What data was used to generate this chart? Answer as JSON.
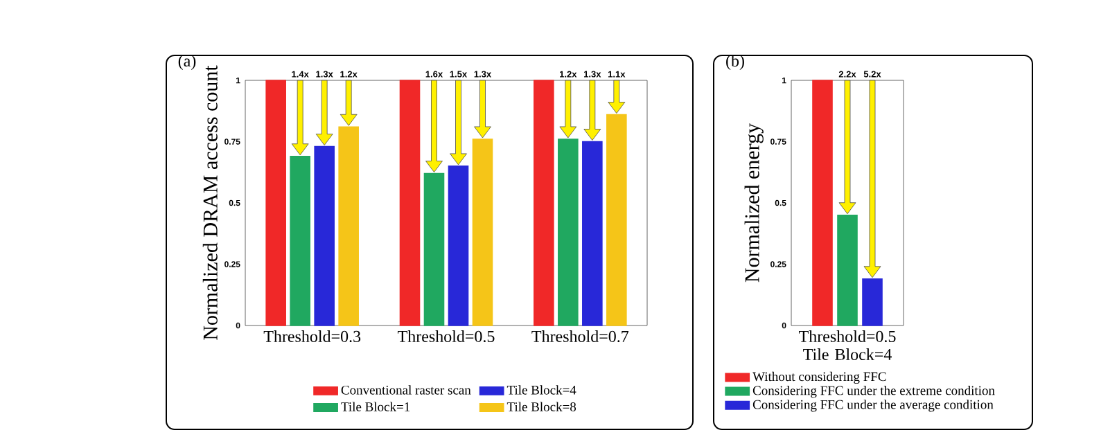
{
  "chart_data": [
    {
      "type": "bar",
      "title": "(a)",
      "categories": [
        "Threshold=0.3",
        "Threshold=0.5",
        "Threshold=0.7"
      ],
      "ylabel": "Normalized DRAM access count",
      "ylim": [
        0,
        1
      ],
      "yticks": [
        0,
        0.25,
        0.5,
        0.75,
        1
      ],
      "legend": "bottom",
      "annotations": [
        "1.4x",
        "1.3x",
        "1.2x",
        "1.6x",
        "1.5x",
        "1.3x",
        "1.2x",
        "1.3x",
        "1.1x"
      ],
      "series": [
        {
          "name": "Conventional raster scan",
          "color": "#f02828",
          "values": [
            1,
            1,
            1
          ]
        },
        {
          "name": "Tile Block=1",
          "color": "#20a860",
          "values": [
            0.69,
            0.62,
            0.76
          ]
        },
        {
          "name": "Tile Block=4",
          "color": "#2828d8",
          "values": [
            0.73,
            0.65,
            0.75
          ]
        },
        {
          "name": "Tile Block=8",
          "color": "#f5c518",
          "values": [
            0.81,
            0.76,
            0.86
          ]
        }
      ]
    },
    {
      "type": "bar",
      "title": "(b)",
      "categories": [
        "Threshold=0.5 Tile Block=4"
      ],
      "ylabel": "Normalized energy",
      "ylim": [
        0,
        1
      ],
      "yticks": [
        0,
        0.25,
        0.5,
        0.75,
        1
      ],
      "legend": "bottom",
      "annotations": [
        "2.2x",
        "5.2x"
      ],
      "series": [
        {
          "name": "Without considering FFC",
          "color": "#f02828",
          "values": [
            1
          ]
        },
        {
          "name": "Considering FFC under the extreme condition",
          "color": "#20a860",
          "values": [
            0.45
          ]
        },
        {
          "name": "Considering FFC under the average condition",
          "color": "#2828d8",
          "values": [
            0.19
          ]
        }
      ]
    }
  ]
}
